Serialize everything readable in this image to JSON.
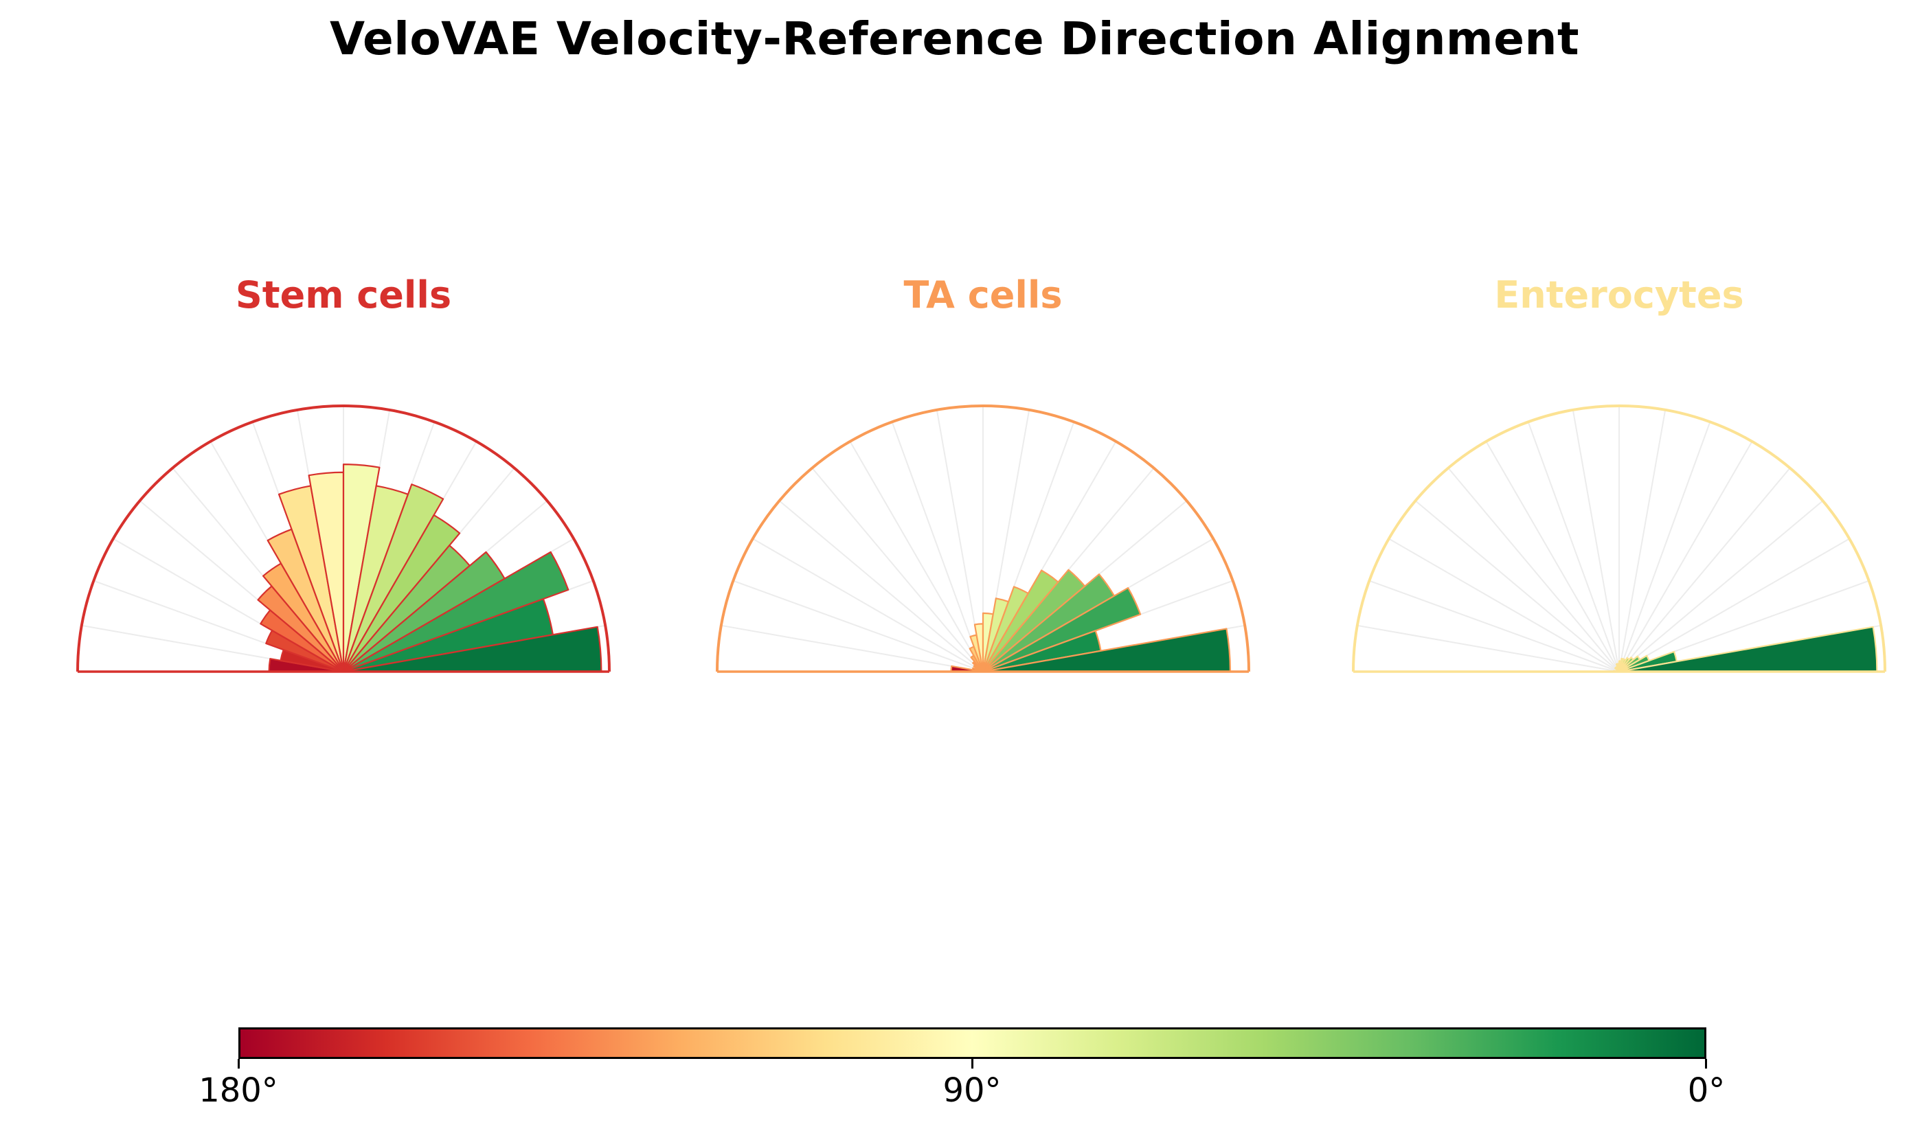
{
  "title": "VeloVAE Velocity-Reference Direction Alignment",
  "colorbar": {
    "tick_labels": [
      "180°",
      "90°",
      "0°"
    ],
    "gradient_stops": [
      "#a50026",
      "#d73027",
      "#f46d43",
      "#fdae61",
      "#fee08b",
      "#ffffbf",
      "#d9ef8b",
      "#a6d96a",
      "#66bd63",
      "#1a9850",
      "#006837"
    ],
    "direction": "red at 180 degrees (left) to green at 0 degrees (right)"
  },
  "chart_data": [
    {
      "type": "polar-histogram",
      "shape": "semicircular rose, angles 0-180 degrees",
      "title": "Stem cells",
      "accent": "#d7312d",
      "bin_width_deg": 10,
      "bin_order": "from 180 degrees (left) to 0 degrees (right)",
      "values_fraction_of_radius": [
        0.28,
        0.24,
        0.31,
        0.36,
        0.42,
        0.47,
        0.57,
        0.71,
        0.75,
        0.78,
        0.71,
        0.75,
        0.68,
        0.62,
        0.7,
        0.9,
        0.8,
        0.97
      ],
      "rlim": [
        0,
        1
      ],
      "color_rule": "bars colored by angle with RdYlGn colormap: 180=red, 90=pale yellow, 0=green"
    },
    {
      "type": "polar-histogram",
      "shape": "semicircular rose, angles 0-180 degrees",
      "title": "TA cells",
      "accent": "#f99b56",
      "bin_width_deg": 10,
      "bin_order": "from 180 degrees (left) to 0 degrees (right)",
      "values_fraction_of_radius": [
        0.12,
        0.04,
        0.03,
        0.04,
        0.05,
        0.07,
        0.1,
        0.14,
        0.18,
        0.22,
        0.28,
        0.34,
        0.44,
        0.5,
        0.57,
        0.63,
        0.45,
        0.93
      ],
      "rlim": [
        0,
        1
      ],
      "color_rule": "bars colored by angle with RdYlGn colormap: 180=red, 90=pale yellow, 0=green"
    },
    {
      "type": "polar-histogram",
      "shape": "semicircular rose, angles 0-180 degrees",
      "title": "Enterocytes",
      "accent": "#fce293",
      "bin_width_deg": 10,
      "bin_order": "from 180 degrees (left) to 0 degrees (right)",
      "values_fraction_of_radius": [
        0.02,
        0.01,
        0.01,
        0.01,
        0.02,
        0.02,
        0.02,
        0.03,
        0.03,
        0.04,
        0.05,
        0.05,
        0.06,
        0.07,
        0.09,
        0.12,
        0.22,
        0.97
      ],
      "rlim": [
        0,
        1
      ],
      "color_rule": "bars colored by angle with RdYlGn colormap: 180=red, 90=pale yellow, 0=green"
    }
  ]
}
